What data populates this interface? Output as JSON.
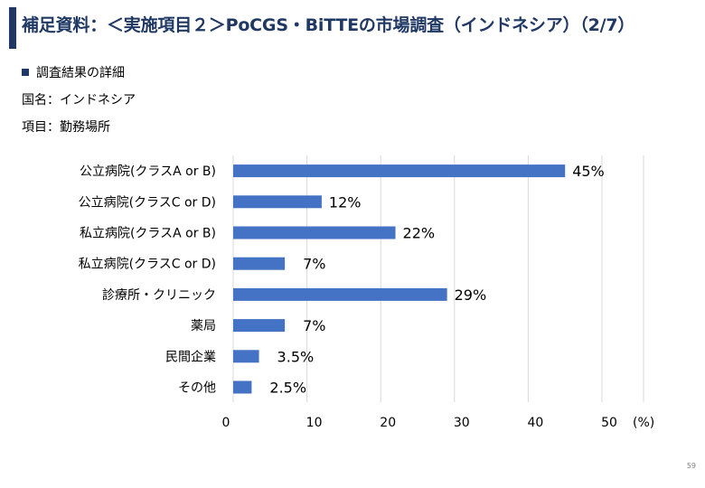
{
  "title": "補足資料：＜実施項目２＞PoCGS・BiTTEの市場調査（インドネシア）（2/7）",
  "bullet": "調査結果の詳細",
  "country_line": "国名：インドネシア",
  "item_line": "項目：勤務場所",
  "page_number": "59",
  "colors": {
    "accent": "#1f3864",
    "bar": "#4472c4",
    "grid": "#d9d9d9"
  },
  "chart_data": {
    "type": "bar",
    "orientation": "horizontal",
    "categories": [
      "公立病院(クラスA or B)",
      "公立病院(クラスC or D)",
      "私立病院(クラスA or B)",
      "私立病院(クラスC or D)",
      "診療所・クリニック",
      "薬局",
      "民間企業",
      "その他"
    ],
    "values": [
      45,
      12,
      22,
      7,
      29,
      7,
      3.5,
      2.5
    ],
    "value_labels": [
      "45%",
      "12%",
      "22%",
      "7%",
      "29%",
      "7%",
      "3.5%",
      "2.5%"
    ],
    "xticks": [
      "0",
      "10",
      "20",
      "30",
      "40",
      "50"
    ],
    "xunit": "(%)",
    "xlim": [
      0,
      50
    ],
    "grid": true
  }
}
